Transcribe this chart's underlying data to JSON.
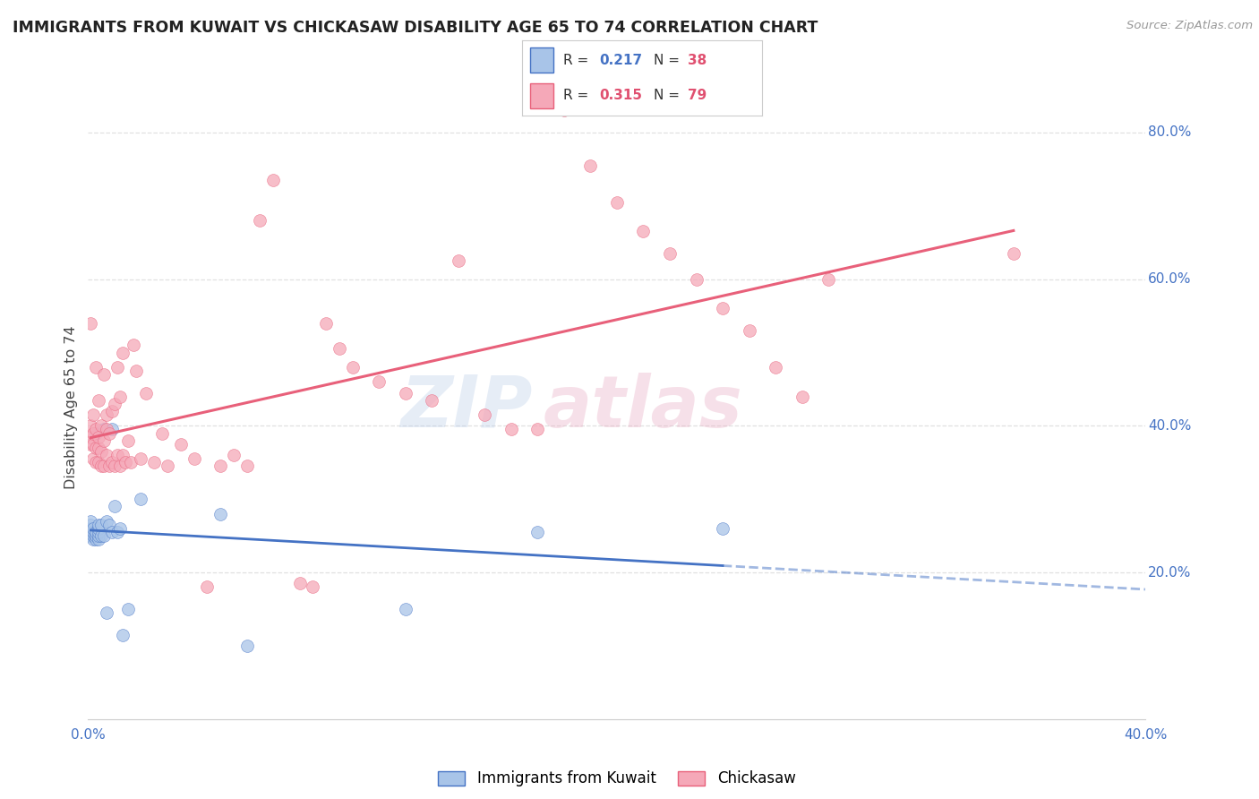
{
  "title": "IMMIGRANTS FROM KUWAIT VS CHICKASAW DISABILITY AGE 65 TO 74 CORRELATION CHART",
  "source": "Source: ZipAtlas.com",
  "ylabel": "Disability Age 65 to 74",
  "xlim": [
    0.0,
    0.4
  ],
  "ylim": [
    0.0,
    0.85
  ],
  "xticks": [
    0.0,
    0.1,
    0.2,
    0.3,
    0.4
  ],
  "yticks": [
    0.2,
    0.4,
    0.6,
    0.8
  ],
  "xticklabels": [
    "0.0%",
    "",
    "",
    "",
    "40.0%"
  ],
  "yticklabels": [
    "20.0%",
    "40.0%",
    "60.0%",
    "80.0%"
  ],
  "blue_color": "#a8c4e8",
  "pink_color": "#f5a8b8",
  "blue_line_color": "#4472c4",
  "pink_line_color": "#e8607a",
  "R_blue": 0.217,
  "N_blue": 38,
  "R_pink": 0.315,
  "N_pink": 79,
  "watermark_text": "ZIP",
  "watermark_text2": "atlas",
  "background_color": "#ffffff",
  "grid_color": "#e0e0e0",
  "tick_color": "#4472c4",
  "blue_points_x": [
    0.001,
    0.001,
    0.001,
    0.001,
    0.001,
    0.002,
    0.002,
    0.002,
    0.002,
    0.003,
    0.003,
    0.003,
    0.003,
    0.004,
    0.004,
    0.004,
    0.004,
    0.004,
    0.005,
    0.005,
    0.006,
    0.006,
    0.007,
    0.007,
    0.008,
    0.009,
    0.009,
    0.01,
    0.011,
    0.012,
    0.013,
    0.015,
    0.02,
    0.05,
    0.06,
    0.12,
    0.17,
    0.24
  ],
  "blue_points_y": [
    0.25,
    0.255,
    0.26,
    0.265,
    0.27,
    0.245,
    0.25,
    0.255,
    0.26,
    0.245,
    0.25,
    0.255,
    0.39,
    0.245,
    0.25,
    0.255,
    0.26,
    0.265,
    0.25,
    0.265,
    0.25,
    0.395,
    0.145,
    0.27,
    0.265,
    0.255,
    0.395,
    0.29,
    0.255,
    0.26,
    0.115,
    0.15,
    0.3,
    0.28,
    0.1,
    0.15,
    0.255,
    0.26
  ],
  "pink_points_x": [
    0.001,
    0.001,
    0.001,
    0.001,
    0.002,
    0.002,
    0.002,
    0.002,
    0.003,
    0.003,
    0.003,
    0.003,
    0.004,
    0.004,
    0.004,
    0.004,
    0.005,
    0.005,
    0.005,
    0.006,
    0.006,
    0.006,
    0.007,
    0.007,
    0.007,
    0.008,
    0.008,
    0.009,
    0.009,
    0.01,
    0.01,
    0.011,
    0.011,
    0.012,
    0.012,
    0.013,
    0.013,
    0.014,
    0.015,
    0.016,
    0.017,
    0.018,
    0.02,
    0.022,
    0.025,
    0.028,
    0.03,
    0.035,
    0.04,
    0.045,
    0.05,
    0.055,
    0.06,
    0.065,
    0.07,
    0.08,
    0.085,
    0.09,
    0.095,
    0.1,
    0.11,
    0.12,
    0.13,
    0.14,
    0.15,
    0.16,
    0.17,
    0.18,
    0.19,
    0.2,
    0.21,
    0.22,
    0.23,
    0.24,
    0.25,
    0.26,
    0.27,
    0.28,
    0.35
  ],
  "pink_points_y": [
    0.375,
    0.385,
    0.4,
    0.54,
    0.355,
    0.375,
    0.39,
    0.415,
    0.35,
    0.37,
    0.395,
    0.48,
    0.35,
    0.37,
    0.385,
    0.435,
    0.345,
    0.365,
    0.4,
    0.345,
    0.38,
    0.47,
    0.36,
    0.395,
    0.415,
    0.345,
    0.39,
    0.35,
    0.42,
    0.345,
    0.43,
    0.36,
    0.48,
    0.345,
    0.44,
    0.36,
    0.5,
    0.35,
    0.38,
    0.35,
    0.51,
    0.475,
    0.355,
    0.445,
    0.35,
    0.39,
    0.345,
    0.375,
    0.355,
    0.18,
    0.345,
    0.36,
    0.345,
    0.68,
    0.735,
    0.185,
    0.18,
    0.54,
    0.505,
    0.48,
    0.46,
    0.445,
    0.435,
    0.625,
    0.415,
    0.395,
    0.395,
    0.83,
    0.755,
    0.705,
    0.665,
    0.635,
    0.6,
    0.56,
    0.53,
    0.48,
    0.44,
    0.6,
    0.635
  ]
}
